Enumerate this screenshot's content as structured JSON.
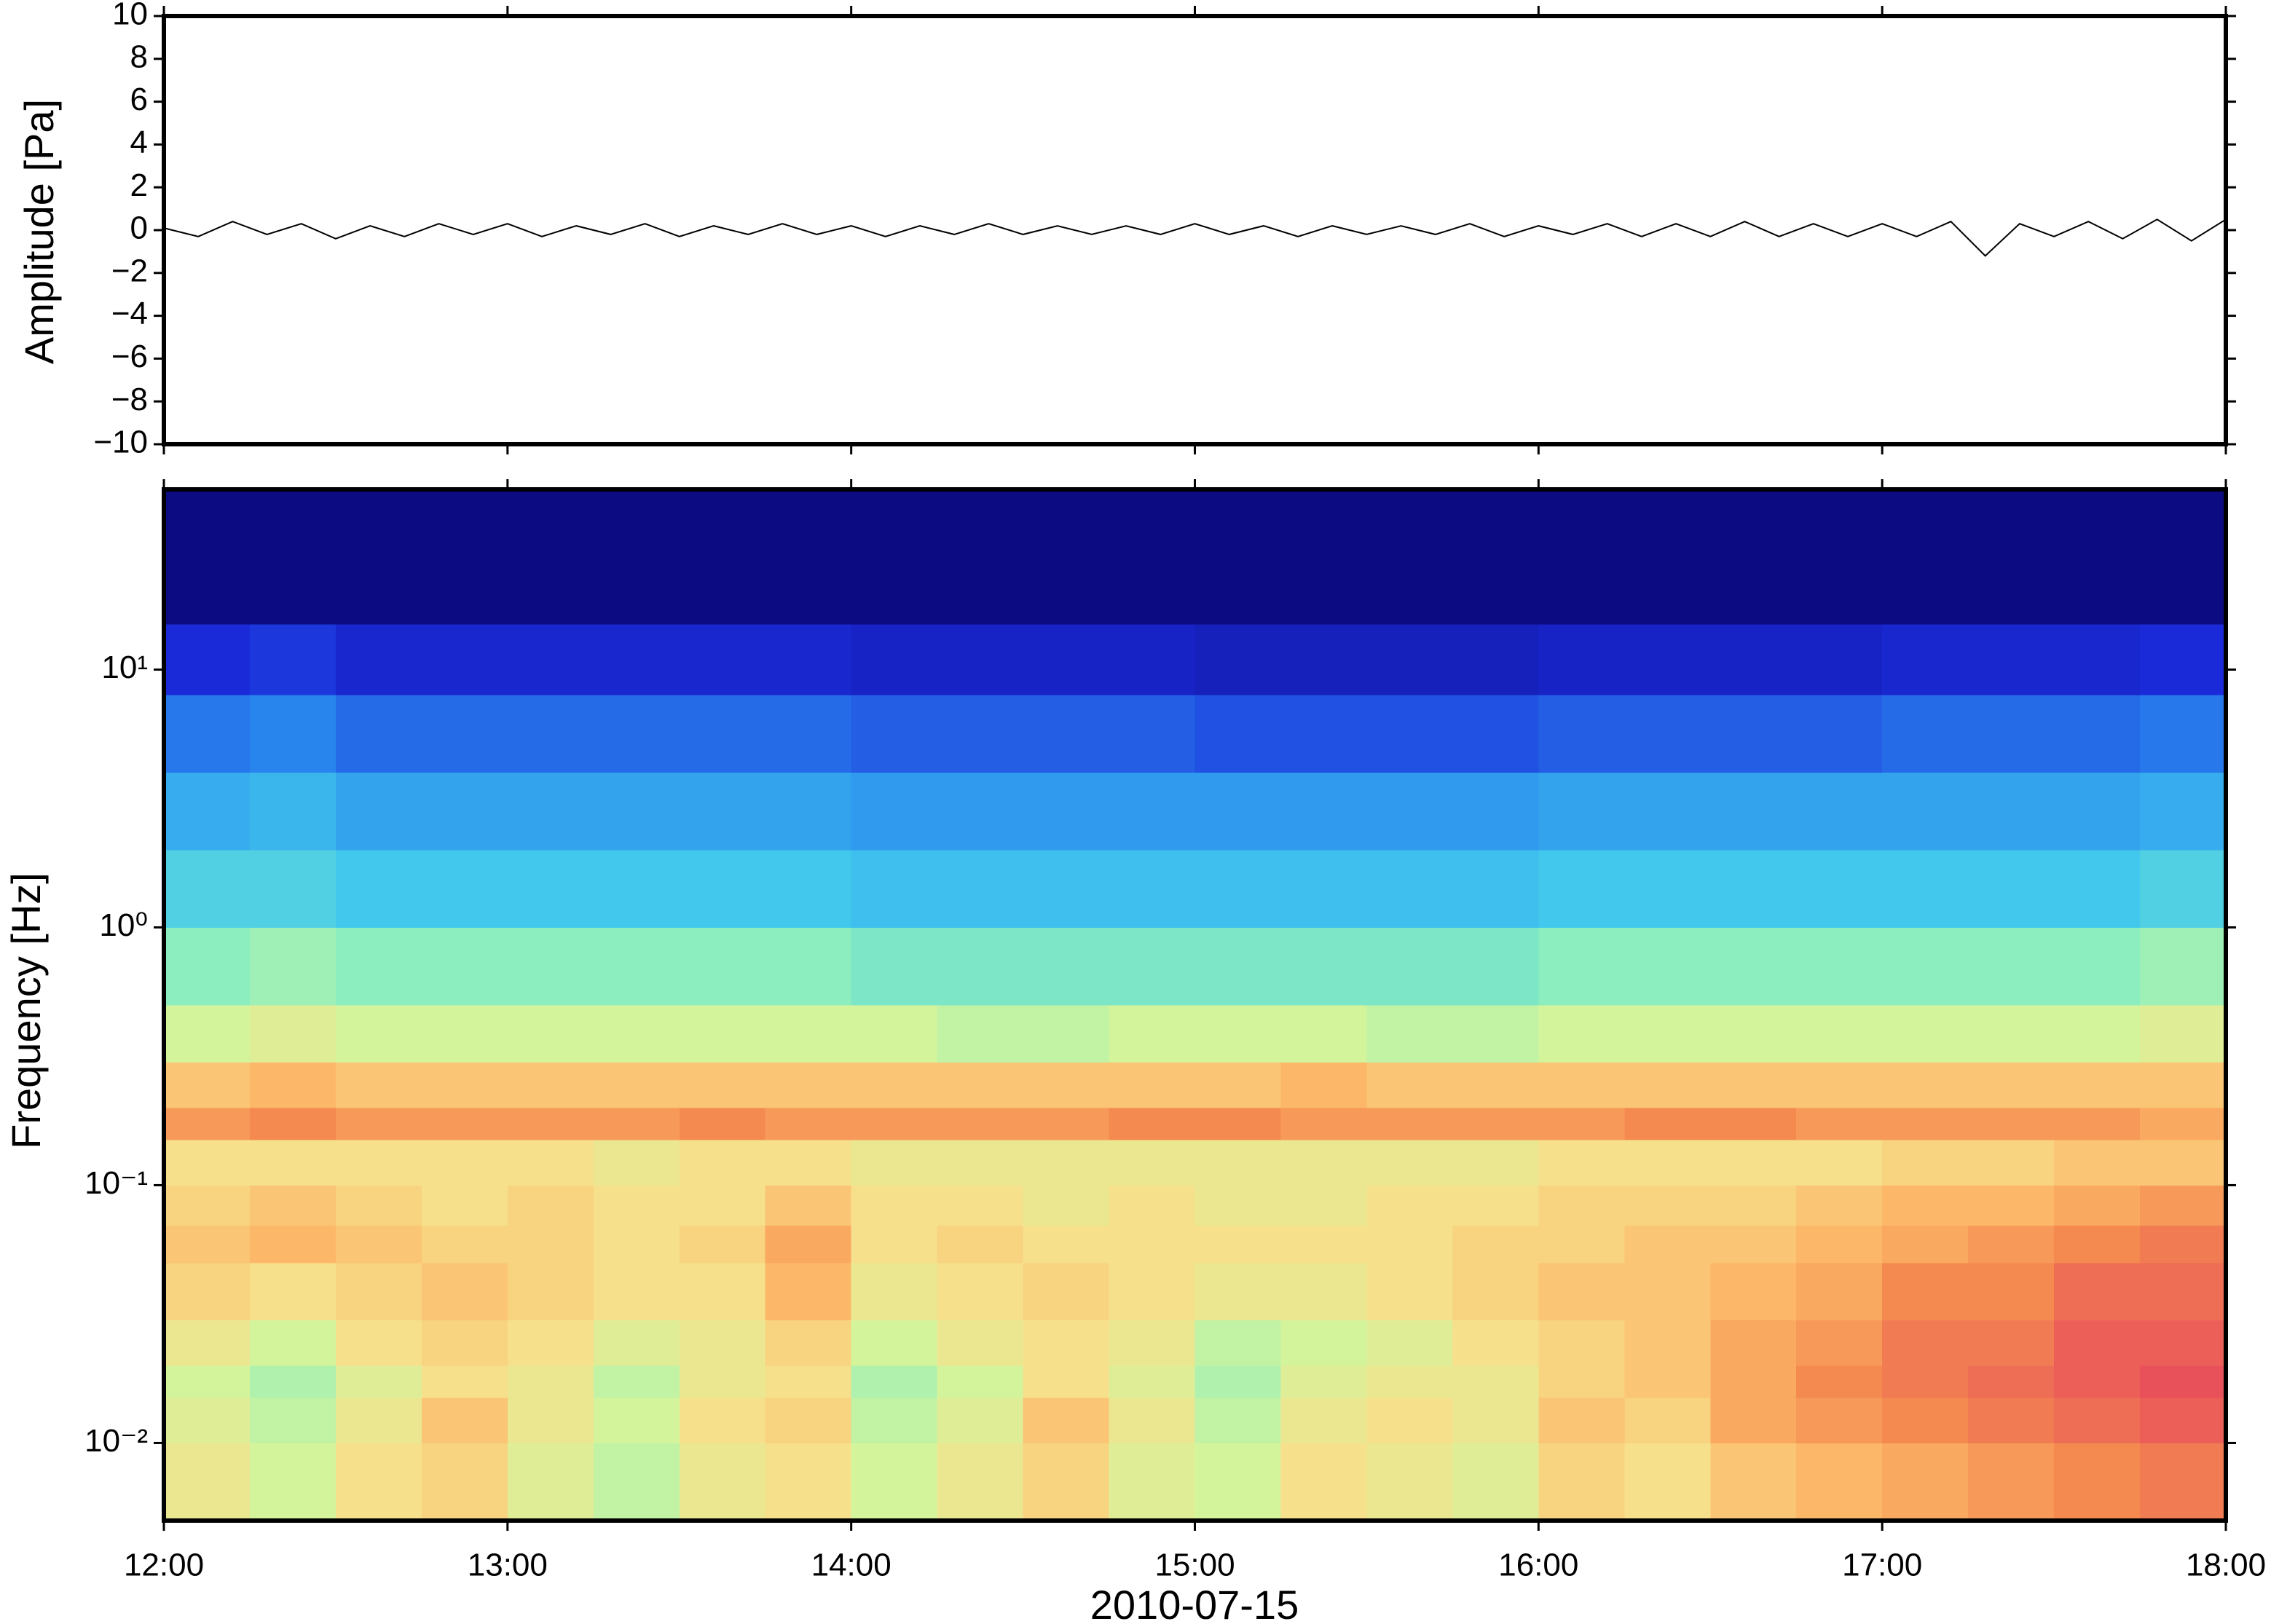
{
  "chart_data": [
    {
      "type": "line",
      "ylabel": "Amplitude [Pa]",
      "color": "#000000",
      "xlim": [
        12,
        18
      ],
      "ylim": [
        -10,
        10
      ],
      "yticks": [
        {
          "value": -10,
          "label": "−10"
        },
        {
          "value": -8,
          "label": "−8"
        },
        {
          "value": -6,
          "label": "−6"
        },
        {
          "value": -4,
          "label": "−4"
        },
        {
          "value": -2,
          "label": "−2"
        },
        0,
        2,
        4,
        6,
        8,
        10
      ],
      "x": [
        12,
        12.1,
        12.2,
        12.3,
        12.4,
        12.5,
        12.6,
        12.7,
        12.8,
        12.9,
        13,
        13.1,
        13.2,
        13.3,
        13.4,
        13.5,
        13.6,
        13.7,
        13.8,
        13.9,
        14,
        14.1,
        14.2,
        14.3,
        14.4,
        14.5,
        14.6,
        14.7,
        14.8,
        14.9,
        15,
        15.1,
        15.2,
        15.3,
        15.4,
        15.5,
        15.6,
        15.7,
        15.8,
        15.9,
        16,
        16.1,
        16.2,
        16.3,
        16.4,
        16.5,
        16.6,
        16.7,
        16.8,
        16.9,
        17,
        17.1,
        17.2,
        17.3,
        17.4,
        17.5,
        17.6,
        17.7,
        17.8,
        17.9,
        18
      ],
      "values": [
        0.1,
        -0.3,
        0.4,
        -0.2,
        0.3,
        -0.4,
        0.2,
        -0.3,
        0.3,
        -0.2,
        0.3,
        -0.3,
        0.2,
        -0.2,
        0.3,
        -0.3,
        0.2,
        -0.2,
        0.3,
        -0.2,
        0.2,
        -0.3,
        0.2,
        -0.2,
        0.3,
        -0.2,
        0.2,
        -0.2,
        0.2,
        -0.2,
        0.3,
        -0.2,
        0.2,
        -0.3,
        0.2,
        -0.2,
        0.2,
        -0.2,
        0.3,
        -0.3,
        0.2,
        -0.2,
        0.3,
        -0.3,
        0.3,
        -0.3,
        0.4,
        -0.3,
        0.3,
        -0.3,
        0.3,
        -0.3,
        0.4,
        -1.2,
        0.3,
        -0.3,
        0.4,
        -0.4,
        0.5,
        -0.5,
        0.5
      ]
    },
    {
      "type": "heatmap",
      "ylabel": "Frequency [Hz]",
      "xlabel": "2010-07-15",
      "xlim": [
        12,
        18
      ],
      "ylim": [
        0.005,
        50
      ],
      "log_y": true,
      "xticks": [
        {
          "value": 12,
          "label": "12:00"
        },
        {
          "value": 13,
          "label": "13:00"
        },
        {
          "value": 14,
          "label": "14:00"
        },
        {
          "value": 15,
          "label": "15:00"
        },
        {
          "value": 16,
          "label": "16:00"
        },
        {
          "value": 17,
          "label": "17:00"
        },
        {
          "value": 18,
          "label": "18:00"
        }
      ],
      "yticks": [
        {
          "value": 0.01,
          "label": "10⁻²"
        },
        {
          "value": 0.1,
          "label": "10⁻¹"
        },
        {
          "value": 1,
          "label": "10⁰"
        },
        {
          "value": 10,
          "label": "10¹"
        }
      ],
      "zlim": [
        0,
        100
      ],
      "colorscale": [
        [
          0,
          "#0c0878"
        ],
        [
          20,
          "#1a2ad8"
        ],
        [
          35,
          "#2a8cf0"
        ],
        [
          48,
          "#42c8ec"
        ],
        [
          58,
          "#8ceebe"
        ],
        [
          66,
          "#d4f49c"
        ],
        [
          72,
          "#f6e08c"
        ],
        [
          78,
          "#fcb868"
        ],
        [
          84,
          "#f48a50"
        ],
        [
          92,
          "#e8505a"
        ]
      ],
      "x": [
        12,
        12.25,
        12.5,
        12.75,
        13,
        13.25,
        13.5,
        13.75,
        14,
        14.25,
        14.5,
        14.75,
        15,
        15.25,
        15.5,
        15.75,
        16,
        16.25,
        16.5,
        16.75,
        17,
        17.25,
        17.5,
        17.75,
        18
      ],
      "y": [
        0.005,
        0.01,
        0.015,
        0.02,
        0.03,
        0.05,
        0.07,
        0.1,
        0.15,
        0.2,
        0.3,
        0.5,
        1,
        2,
        4,
        8,
        15,
        50
      ],
      "z": [
        [
          70,
          66,
          72,
          74,
          68,
          64,
          70,
          72,
          66,
          70,
          74,
          68,
          66,
          72,
          70,
          68,
          74,
          72,
          76,
          78,
          80,
          82,
          84,
          86
        ],
        [
          68,
          64,
          70,
          76,
          70,
          66,
          72,
          74,
          64,
          68,
          76,
          70,
          64,
          70,
          72,
          70,
          76,
          74,
          80,
          82,
          84,
          86,
          88,
          90
        ],
        [
          66,
          62,
          68,
          72,
          70,
          64,
          70,
          72,
          62,
          66,
          72,
          68,
          62,
          68,
          70,
          70,
          74,
          76,
          80,
          84,
          86,
          88,
          90,
          92
        ],
        [
          70,
          66,
          72,
          74,
          72,
          68,
          70,
          74,
          66,
          70,
          72,
          70,
          64,
          66,
          68,
          72,
          74,
          76,
          80,
          82,
          86,
          86,
          90,
          90
        ],
        [
          74,
          72,
          74,
          76,
          74,
          72,
          72,
          78,
          70,
          72,
          74,
          72,
          70,
          70,
          72,
          74,
          76,
          76,
          78,
          80,
          84,
          84,
          88,
          88
        ],
        [
          76,
          78,
          76,
          74,
          74,
          72,
          74,
          80,
          72,
          74,
          72,
          72,
          72,
          72,
          72,
          74,
          74,
          76,
          76,
          78,
          80,
          82,
          84,
          86
        ],
        [
          74,
          76,
          74,
          72,
          74,
          72,
          72,
          76,
          72,
          72,
          70,
          72,
          70,
          70,
          72,
          72,
          74,
          74,
          74,
          76,
          78,
          78,
          80,
          82
        ],
        [
          72,
          72,
          72,
          72,
          72,
          70,
          72,
          72,
          70,
          70,
          70,
          70,
          70,
          70,
          70,
          70,
          72,
          72,
          72,
          72,
          74,
          74,
          76,
          76
        ],
        [
          82,
          84,
          82,
          82,
          82,
          82,
          84,
          82,
          82,
          82,
          82,
          84,
          84,
          82,
          82,
          82,
          82,
          84,
          84,
          82,
          82,
          82,
          82,
          80
        ],
        [
          76,
          78,
          76,
          76,
          76,
          76,
          76,
          76,
          76,
          76,
          76,
          76,
          76,
          78,
          76,
          76,
          76,
          76,
          76,
          76,
          76,
          76,
          76,
          76
        ],
        [
          66,
          68,
          66,
          66,
          66,
          66,
          66,
          66,
          66,
          64,
          64,
          66,
          66,
          66,
          64,
          64,
          66,
          66,
          66,
          66,
          66,
          66,
          66,
          68
        ],
        [
          58,
          60,
          58,
          58,
          58,
          58,
          58,
          58,
          56,
          56,
          56,
          56,
          56,
          56,
          56,
          56,
          58,
          58,
          58,
          58,
          58,
          58,
          58,
          60
        ],
        [
          50,
          50,
          48,
          48,
          48,
          48,
          48,
          48,
          46,
          46,
          46,
          46,
          46,
          46,
          46,
          46,
          48,
          48,
          48,
          48,
          48,
          48,
          48,
          50
        ],
        [
          42,
          44,
          40,
          40,
          40,
          40,
          40,
          40,
          38,
          38,
          38,
          38,
          38,
          38,
          38,
          38,
          40,
          40,
          40,
          40,
          40,
          40,
          40,
          42
        ],
        [
          32,
          34,
          30,
          30,
          30,
          30,
          30,
          30,
          28,
          28,
          28,
          28,
          26,
          26,
          26,
          26,
          28,
          28,
          28,
          28,
          30,
          30,
          30,
          32
        ],
        [
          20,
          22,
          18,
          18,
          18,
          18,
          18,
          18,
          16,
          16,
          16,
          16,
          14,
          14,
          14,
          14,
          16,
          16,
          16,
          16,
          18,
          18,
          18,
          20
        ],
        [
          2,
          2,
          2,
          2,
          2,
          2,
          2,
          2,
          2,
          2,
          2,
          2,
          2,
          2,
          2,
          2,
          2,
          2,
          2,
          2,
          2,
          2,
          2,
          2
        ]
      ]
    }
  ]
}
